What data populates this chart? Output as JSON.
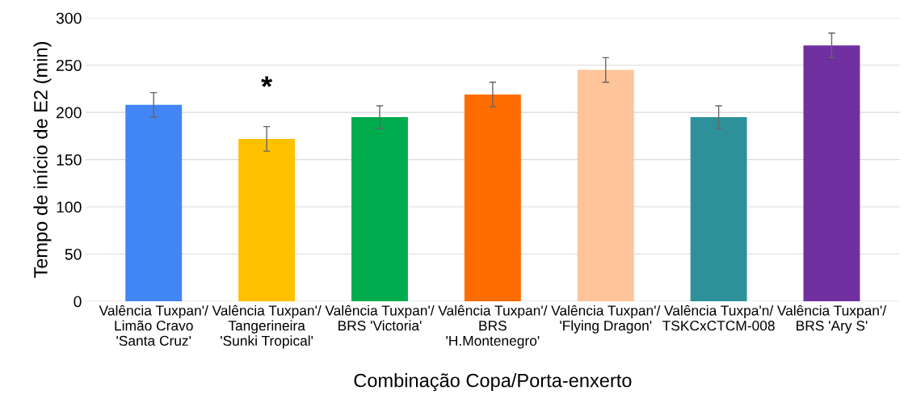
{
  "chart_data": {
    "type": "bar",
    "xlabel": "Combinação Copa/Porta-enxerto",
    "ylabel": "Tempo de início de E2 (min)",
    "categories": [
      "Valência Tuxpan'/\nLimão Cravo\n'Santa Cruz'",
      "Valência Tuxpan'/\nTangerineira\n'Sunki Tropical'",
      "Valência Tuxpan'/\nBRS 'Victoria'",
      "Valência Tuxpan'/\nBRS\n'H.Montenegro'",
      "Valência Tuxpan'/\n'Flying Dragon'",
      "Valência Tuxpa'n/\nTSKCxCTCM-008",
      "Valência Tuxpan'/\nBRS 'Ary S'"
    ],
    "values": [
      208,
      172,
      195,
      219,
      245,
      195,
      271
    ],
    "errors": [
      13,
      13,
      12,
      13,
      13,
      12,
      13
    ],
    "colors": [
      "#4285f4",
      "#ffc000",
      "#00ac4e",
      "#ff6d00",
      "#ffc499",
      "#2e919a",
      "#7030a0"
    ],
    "annotations": [
      "*"
    ],
    "ylim": [
      0,
      300
    ],
    "yticks": [
      0,
      50,
      100,
      150,
      200,
      250,
      300
    ],
    "grid": "y",
    "legend": false
  }
}
